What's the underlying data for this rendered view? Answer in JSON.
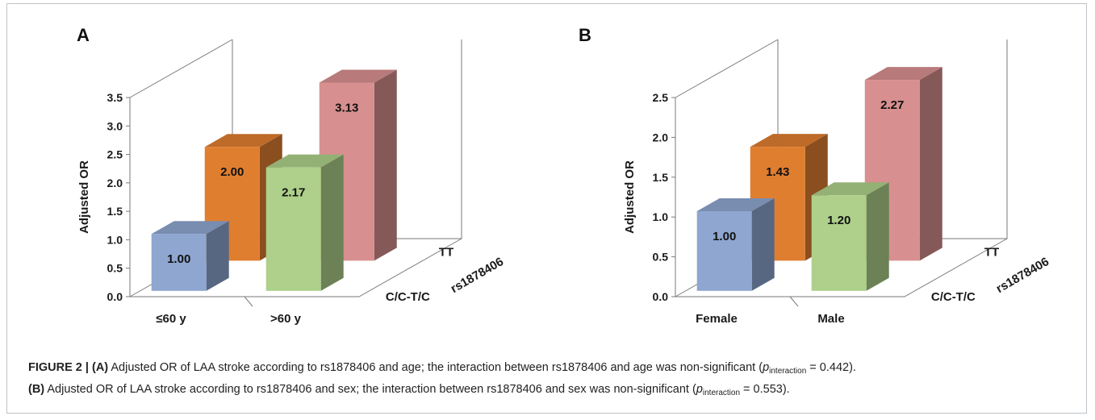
{
  "colors": {
    "blue": "#8ea6d0",
    "orange": "#e07e30",
    "green": "#aed08a",
    "pink": "#d88f8f",
    "frame": "#7a7a7a",
    "caption_bold": "#222222"
  },
  "chart_data": [
    {
      "type": "bar",
      "panel_label": "A",
      "ylabel": "Adjusted OR",
      "ylim": [
        0,
        3.5
      ],
      "y_ticks": [
        "0.0",
        "0.5",
        "1.0",
        "1.5",
        "2.0",
        "2.5",
        "3.0",
        "3.5"
      ],
      "categories": [
        "≤60 y",
        ">60 y"
      ],
      "depth_labels": [
        "C/C-T/C",
        "TT"
      ],
      "depth_axis_label": "rs1878406",
      "bars": [
        {
          "category": "≤60 y",
          "genotype": "C/C-T/C",
          "value": 1.0,
          "label": "1.00",
          "color": "blue"
        },
        {
          "category": "≤60 y",
          "genotype": "TT",
          "value": 2.0,
          "label": "2.00",
          "color": "orange"
        },
        {
          "category": ">60 y",
          "genotype": "C/C-T/C",
          "value": 2.17,
          "label": "2.17",
          "color": "green"
        },
        {
          "category": ">60 y",
          "genotype": "TT",
          "value": 3.13,
          "label": "3.13",
          "color": "pink"
        }
      ],
      "grid": false
    },
    {
      "type": "bar",
      "panel_label": "B",
      "ylabel": "Adjusted OR",
      "ylim": [
        0,
        2.5
      ],
      "y_ticks": [
        "0.0",
        "0.5",
        "1.0",
        "1.5",
        "2.0",
        "2.5"
      ],
      "categories": [
        "Female",
        "Male"
      ],
      "depth_labels": [
        "C/C-T/C",
        "TT"
      ],
      "depth_axis_label": "rs1878406",
      "bars": [
        {
          "category": "Female",
          "genotype": "C/C-T/C",
          "value": 1.0,
          "label": "1.00",
          "color": "blue"
        },
        {
          "category": "Female",
          "genotype": "TT",
          "value": 1.43,
          "label": "1.43",
          "color": "orange"
        },
        {
          "category": "Male",
          "genotype": "C/C-T/C",
          "value": 1.2,
          "label": "1.20",
          "color": "green"
        },
        {
          "category": "Male",
          "genotype": "TT",
          "value": 2.27,
          "label": "2.27",
          "color": "pink"
        }
      ],
      "grid": false
    }
  ],
  "caption": {
    "figure_label": "FIGURE 2 |",
    "a_label": "(A)",
    "a_text": " Adjusted OR of LAA stroke according to rs1878406 and age; the interaction between rs1878406 and age was non-significant (",
    "a_p": "p",
    "a_sub": "interaction",
    "a_val": " = 0.442).",
    "b_label": "(B)",
    "b_text": " Adjusted OR of LAA stroke according to rs1878406 and sex; the interaction between rs1878406 and sex was non-significant (",
    "b_p": "p",
    "b_sub": "interaction",
    "b_val": " = 0.553)."
  }
}
